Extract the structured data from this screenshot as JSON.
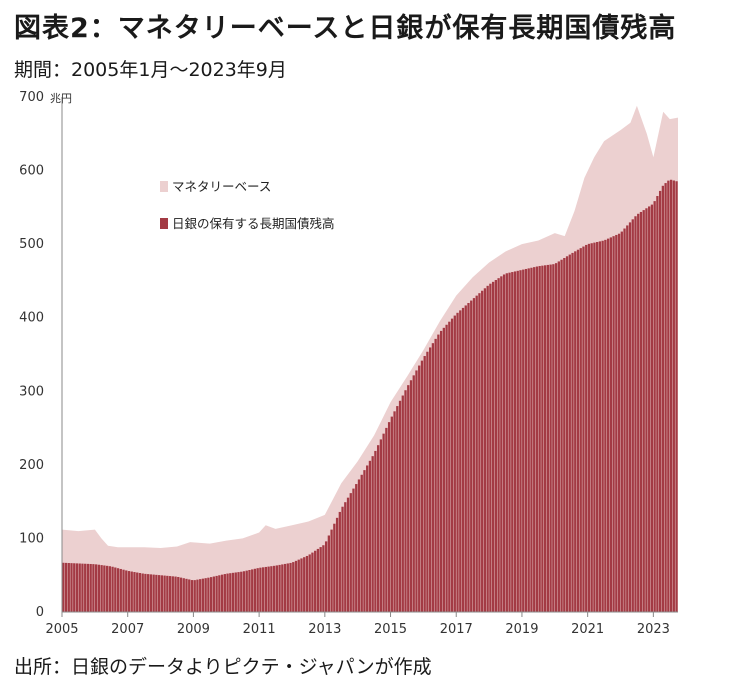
{
  "title": "図表2：マネタリーベースと日銀が保有長期国債残高",
  "subtitle": "期間：2005年1月～2023年9月",
  "source": "出所：日銀のデータよりピクテ・ジャパンが作成",
  "colors": {
    "monetary_base": "#ecd0d0",
    "jgb_holdings": "#a33a44",
    "axis": "#888888"
  },
  "chart_data": {
    "type": "area",
    "unit": "兆円",
    "ylim": [
      0,
      700
    ],
    "yticks": [
      0,
      100,
      200,
      300,
      400,
      500,
      600,
      700
    ],
    "xlim": [
      2005.0,
      2023.75
    ],
    "xticks": [
      2005,
      2007,
      2009,
      2011,
      2013,
      2015,
      2017,
      2019,
      2021,
      2023
    ],
    "legend_position": "top-left",
    "grid": false,
    "series": [
      {
        "name": "マネタリーベース",
        "style": "area",
        "x": [
          2005.0,
          2005.5,
          2006.0,
          2006.2,
          2006.4,
          2006.7,
          2007.0,
          2007.5,
          2008.0,
          2008.5,
          2008.9,
          2009.5,
          2010.0,
          2010.5,
          2011.0,
          2011.2,
          2011.5,
          2012.0,
          2012.5,
          2013.0,
          2013.5,
          2014.0,
          2014.5,
          2015.0,
          2015.5,
          2016.0,
          2016.5,
          2017.0,
          2017.5,
          2018.0,
          2018.5,
          2019.0,
          2019.5,
          2020.0,
          2020.3,
          2020.6,
          2020.9,
          2021.2,
          2021.5,
          2022.0,
          2022.3,
          2022.5,
          2022.8,
          2023.0,
          2023.3,
          2023.5,
          2023.75
        ],
        "values": [
          112,
          110,
          112,
          100,
          90,
          88,
          88,
          88,
          87,
          89,
          95,
          93,
          97,
          100,
          108,
          118,
          113,
          118,
          123,
          132,
          175,
          205,
          240,
          285,
          320,
          356,
          395,
          430,
          455,
          475,
          490,
          500,
          505,
          515,
          511,
          545,
          590,
          618,
          640,
          655,
          665,
          688,
          650,
          618,
          680,
          670,
          672
        ]
      },
      {
        "name": "日銀の保有する長期国債残高",
        "style": "bar",
        "x": [
          2005.0,
          2005.5,
          2006.0,
          2006.5,
          2007.0,
          2007.5,
          2008.0,
          2008.5,
          2009.0,
          2009.5,
          2010.0,
          2010.5,
          2011.0,
          2011.5,
          2012.0,
          2012.5,
          2013.0,
          2013.5,
          2014.0,
          2014.5,
          2015.0,
          2015.5,
          2016.0,
          2016.5,
          2017.0,
          2017.5,
          2018.0,
          2018.5,
          2019.0,
          2019.5,
          2020.0,
          2020.5,
          2021.0,
          2021.5,
          2022.0,
          2022.5,
          2023.0,
          2023.3,
          2023.5,
          2023.75
        ],
        "values": [
          67,
          66,
          65,
          62,
          56,
          52,
          50,
          48,
          43,
          47,
          52,
          55,
          60,
          63,
          67,
          77,
          92,
          140,
          177,
          215,
          262,
          305,
          345,
          380,
          405,
          425,
          445,
          460,
          465,
          470,
          473,
          487,
          500,
          505,
          515,
          540,
          555,
          580,
          588,
          585
        ]
      }
    ]
  }
}
